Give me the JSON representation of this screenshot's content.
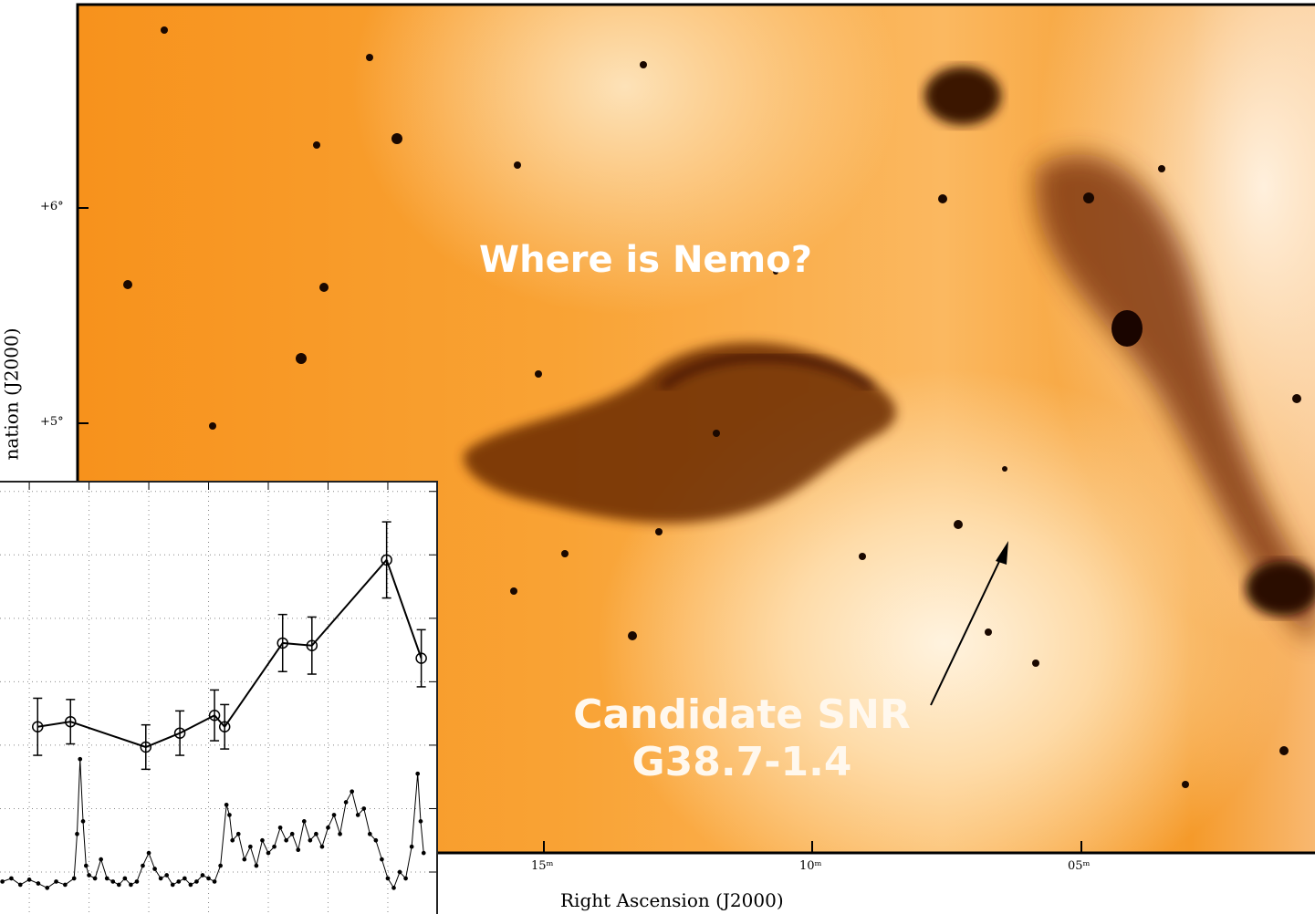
{
  "image": {
    "annotation": "Where is Nemo?",
    "candidate": [
      "Candidate SNR",
      "G38.7-1.4"
    ],
    "x_axis_label": "Right Ascension (J2000)",
    "y_axis_label": "nation (J2000)",
    "x_tick_labels": [
      "15ᵐ",
      "10ᵐ",
      "05ᵐ"
    ],
    "y_tick_labels": [
      "+6°",
      "+5°"
    ]
  },
  "chart_data": {
    "type": "line",
    "xlim": [
      -0.49,
      6.81
    ],
    "ylim": [
      -0.69,
      6.14
    ],
    "xticks": [
      0,
      1,
      2,
      3,
      4,
      5,
      6
    ],
    "yticks": [
      0,
      1,
      2,
      3,
      4,
      5,
      6
    ],
    "grid": true,
    "series": [
      {
        "color": "#000000",
        "marker": "circle",
        "x": [
          0.14,
          0.69,
          1.95,
          2.52,
          3.1,
          3.27,
          4.24,
          4.73,
          5.98,
          6.56
        ],
        "values": [
          2.29,
          2.37,
          1.97,
          2.19,
          2.47,
          2.29,
          3.61,
          3.57,
          4.92,
          3.37
        ],
        "errors": [
          0.45,
          0.35,
          0.35,
          0.35,
          0.4,
          0.35,
          0.45,
          0.45,
          0.6,
          0.45
        ]
      },
      {
        "color": "#000000",
        "marker": "dot",
        "x": [
          -0.45,
          -0.3,
          -0.15,
          0,
          0.15,
          0.3,
          0.45,
          0.6,
          0.75,
          0.8,
          0.85,
          0.9,
          0.95,
          1.0,
          1.1,
          1.2,
          1.3,
          1.4,
          1.5,
          1.6,
          1.7,
          1.8,
          1.9,
          2.0,
          2.1,
          2.2,
          2.3,
          2.4,
          2.5,
          2.6,
          2.7,
          2.8,
          2.9,
          3.0,
          3.1,
          3.2,
          3.3,
          3.35,
          3.4,
          3.5,
          3.6,
          3.7,
          3.8,
          3.9,
          4.0,
          4.1,
          4.2,
          4.3,
          4.4,
          4.5,
          4.6,
          4.7,
          4.8,
          4.9,
          5.0,
          5.1,
          5.2,
          5.3,
          5.4,
          5.5,
          5.6,
          5.7,
          5.8,
          5.9,
          6.0,
          6.1,
          6.2,
          6.3,
          6.4,
          6.5,
          6.55,
          6.6
        ],
        "values": [
          -0.15,
          -0.1,
          -0.2,
          -0.12,
          -0.18,
          -0.25,
          -0.15,
          -0.2,
          -0.1,
          0.6,
          1.78,
          0.8,
          0.1,
          -0.05,
          -0.1,
          0.2,
          -0.1,
          -0.15,
          -0.2,
          -0.1,
          -0.2,
          -0.15,
          0.1,
          0.3,
          0.05,
          -0.1,
          -0.05,
          -0.2,
          -0.15,
          -0.1,
          -0.2,
          -0.15,
          -0.05,
          -0.1,
          -0.15,
          0.1,
          1.06,
          0.9,
          0.5,
          0.6,
          0.2,
          0.4,
          0.1,
          0.5,
          0.3,
          0.4,
          0.7,
          0.5,
          0.6,
          0.35,
          0.8,
          0.5,
          0.6,
          0.4,
          0.7,
          0.9,
          0.6,
          1.1,
          1.27,
          0.9,
          1.0,
          0.6,
          0.5,
          0.2,
          -0.1,
          -0.25,
          0.0,
          -0.1,
          0.4,
          1.55,
          0.8,
          0.3
        ]
      }
    ]
  }
}
